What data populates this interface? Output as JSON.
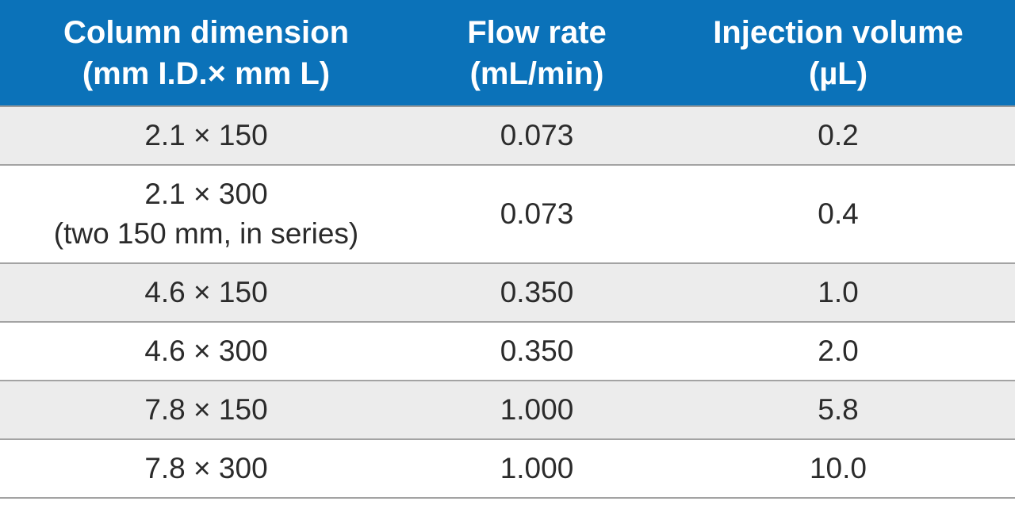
{
  "table": {
    "header": [
      [
        "Column dimension",
        "(mm I.D.× mm L)"
      ],
      [
        "Flow rate",
        "(mL/min)"
      ],
      [
        "Injection volume",
        "(µL)"
      ]
    ],
    "rows": [
      [
        [
          "2.1 × 150"
        ],
        [
          "0.073"
        ],
        [
          "0.2"
        ]
      ],
      [
        [
          "2.1 × 300",
          "(two 150 mm, in series)"
        ],
        [
          "0.073"
        ],
        [
          "0.4"
        ]
      ],
      [
        [
          "4.6 × 150"
        ],
        [
          "0.350"
        ],
        [
          "1.0"
        ]
      ],
      [
        [
          "4.6 × 300"
        ],
        [
          "0.350"
        ],
        [
          "2.0"
        ]
      ],
      [
        [
          "7.8 × 150"
        ],
        [
          "1.000"
        ],
        [
          "5.8"
        ]
      ],
      [
        [
          "7.8 × 300"
        ],
        [
          "1.000"
        ],
        [
          "10.0"
        ]
      ]
    ]
  }
}
